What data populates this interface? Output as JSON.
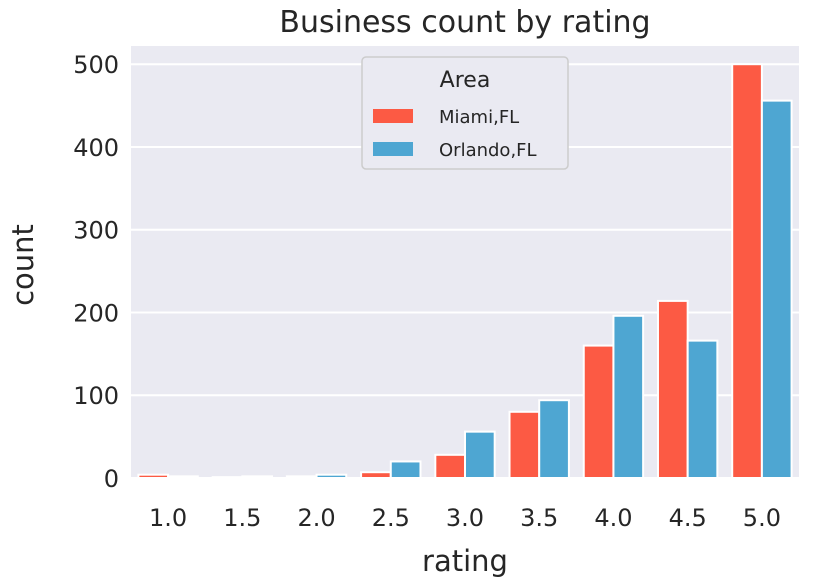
{
  "chart_data": {
    "type": "bar",
    "title": "Business count by rating",
    "xlabel": "rating",
    "ylabel": "count",
    "categories": [
      "1.0",
      "1.5",
      "2.0",
      "2.5",
      "3.0",
      "3.5",
      "4.0",
      "4.5",
      "5.0"
    ],
    "series": [
      {
        "name": "Miami,FL",
        "values": [
          4,
          1,
          2,
          7,
          28,
          80,
          160,
          214,
          500
        ]
      },
      {
        "name": "Orlando,FL",
        "values": [
          2,
          2,
          4,
          20,
          56,
          94,
          196,
          166,
          456
        ]
      }
    ],
    "ylim": [
      0,
      522
    ],
    "yticks": [
      0,
      100,
      200,
      300,
      400,
      500
    ],
    "grid": true,
    "legend": {
      "title": "Area",
      "position": "top-center"
    },
    "colors": {
      "Miami,FL": "#fc5a44",
      "Orlando,FL": "#4ea6d2",
      "background": "#eaeaf2",
      "grid": "#ffffff"
    }
  }
}
